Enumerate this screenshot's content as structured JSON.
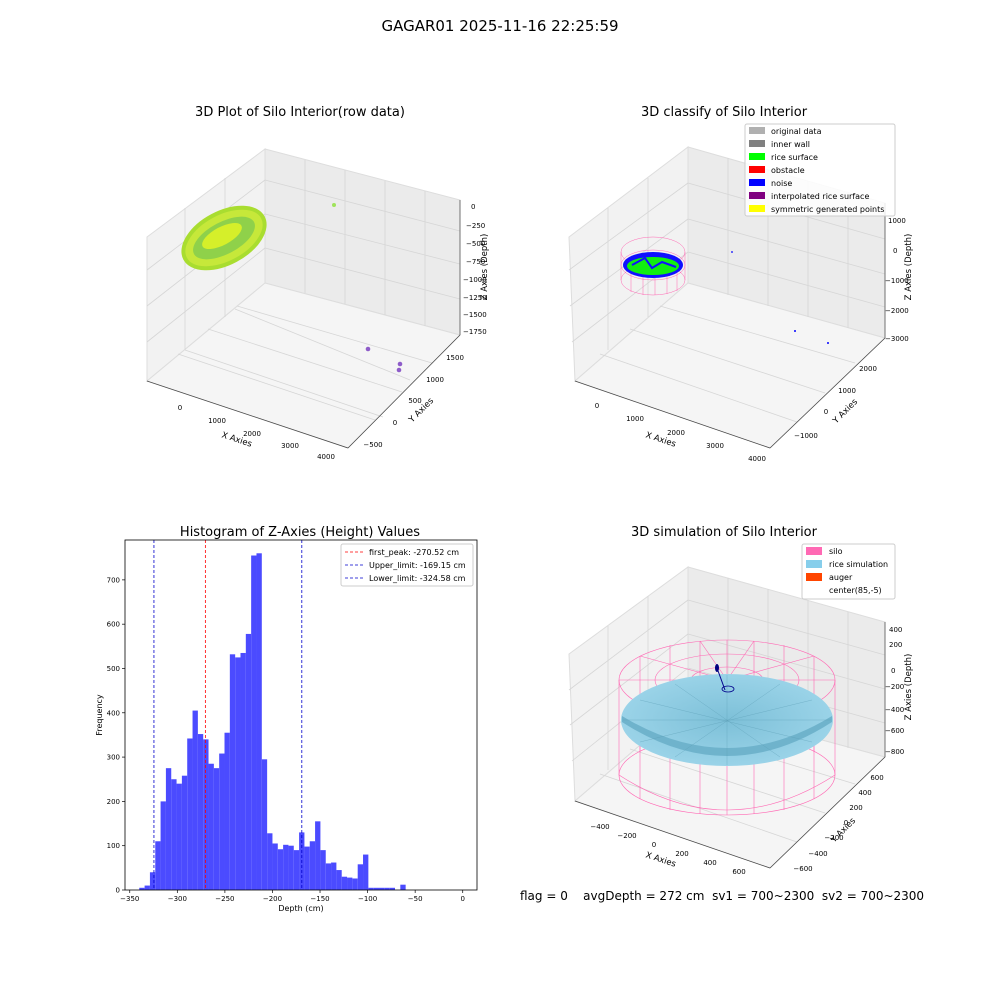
{
  "suptitle": "GAGAR01 2025-11-16 22:25:59",
  "status_line": {
    "flag": "flag = 0",
    "avgdepth": "avgDepth = 272 cm",
    "sv1": "sv1 = 700~2300",
    "sv2": "sv2 = 700~2300"
  },
  "colors": {
    "pane": "#f2f2f2",
    "grid": "#d0d0d0",
    "hist": "#4b4bff",
    "first_peak": "#ff0000",
    "limit": "#0000cc",
    "silo": "#ff69b4",
    "rice_sim": "#87ceeb",
    "auger": "#ff4500"
  },
  "plots": {
    "raw": {
      "title": "3D Plot of Silo Interior(row data)",
      "xlabel": "X Axies",
      "ylabel": "Y Axies",
      "zlabel": "Z Axies (Depth)",
      "xticks": [
        "0",
        "1000",
        "2000",
        "3000",
        "4000"
      ],
      "yticks": [
        "−500",
        "0",
        "500",
        "1000",
        "1500"
      ],
      "zticks": [
        "0",
        "−250",
        "−500",
        "−750",
        "−1000",
        "−1250",
        "−1500",
        "−1750"
      ]
    },
    "classify": {
      "title": "3D classify of Silo Interior",
      "xlabel": "X Axies",
      "ylabel": "Y Axies",
      "zlabel": "Z Axies (Depth)",
      "xticks": [
        "0",
        "1000",
        "2000",
        "3000",
        "4000"
      ],
      "yticks": [
        "−1000",
        "0",
        "1000",
        "2000"
      ],
      "zticks": [
        "1000",
        "0",
        "−1000",
        "−2000",
        "−3000"
      ],
      "legend": [
        {
          "label": "original data",
          "color": "#b0b0b0"
        },
        {
          "label": "inner wall",
          "color": "#808080"
        },
        {
          "label": "rice surface",
          "color": "#00ff00"
        },
        {
          "label": "obstacle",
          "color": "#ff0000"
        },
        {
          "label": "noise",
          "color": "#0000ff"
        },
        {
          "label": "interpolated rice surface",
          "color": "#800080"
        },
        {
          "label": "symmetric generated points",
          "color": "#ffff00"
        }
      ]
    },
    "simulation": {
      "title": "3D simulation of Silo Interior",
      "xlabel": "X Axies",
      "ylabel": "Y Axies",
      "zlabel": "Z Axies (Depth)",
      "xticks": [
        "−400",
        "−200",
        "0",
        "200",
        "400",
        "600"
      ],
      "yticks": [
        "−600",
        "−400",
        "−200",
        "0",
        "200",
        "400",
        "600"
      ],
      "zticks": [
        "400",
        "200",
        "0",
        "−200",
        "−400",
        "−600",
        "−800"
      ],
      "legend": [
        {
          "label": "silo",
          "color": "#ff69b4"
        },
        {
          "label": "rice simulation",
          "color": "#87ceeb"
        },
        {
          "label": "auger",
          "color": "#ff4500"
        },
        {
          "label": "center(85,-5)",
          "color": ""
        }
      ]
    }
  },
  "chart_data": [
    {
      "type": "bar",
      "title": "Histogram of Z-Axies (Height) Values",
      "xlabel": "Depth (cm)",
      "ylabel": "Frequency",
      "xlim": [
        -355,
        15
      ],
      "ylim": [
        0,
        790
      ],
      "xticks": [
        -350,
        -300,
        -250,
        -200,
        -150,
        -100,
        -50,
        0
      ],
      "yticks": [
        0,
        100,
        200,
        300,
        400,
        500,
        600,
        700
      ],
      "bin_start": -340,
      "bin_width": 5.6,
      "values": [
        5,
        10,
        40,
        110,
        200,
        275,
        250,
        240,
        258,
        342,
        405,
        352,
        340,
        285,
        275,
        308,
        355,
        532,
        525,
        535,
        578,
        755,
        760,
        295,
        128,
        105,
        92,
        102,
        100,
        90,
        130,
        98,
        110,
        155,
        90,
        60,
        62,
        45,
        30,
        28,
        26,
        58,
        80,
        5,
        5,
        5,
        5,
        5,
        0,
        12
      ],
      "vlines": [
        {
          "name": "first_peak",
          "label": "first_peak: -270.52 cm",
          "x": -270.52,
          "color": "#ff0000"
        },
        {
          "name": "upper-limit",
          "label": "Upper_limit: -169.15 cm",
          "x": -169.15,
          "color": "#0000cc"
        },
        {
          "name": "lower-limit",
          "label": "Lower_limit: -324.58 cm",
          "x": -324.58,
          "color": "#0000cc"
        }
      ],
      "legend_position": "top-right",
      "grid": false
    }
  ]
}
